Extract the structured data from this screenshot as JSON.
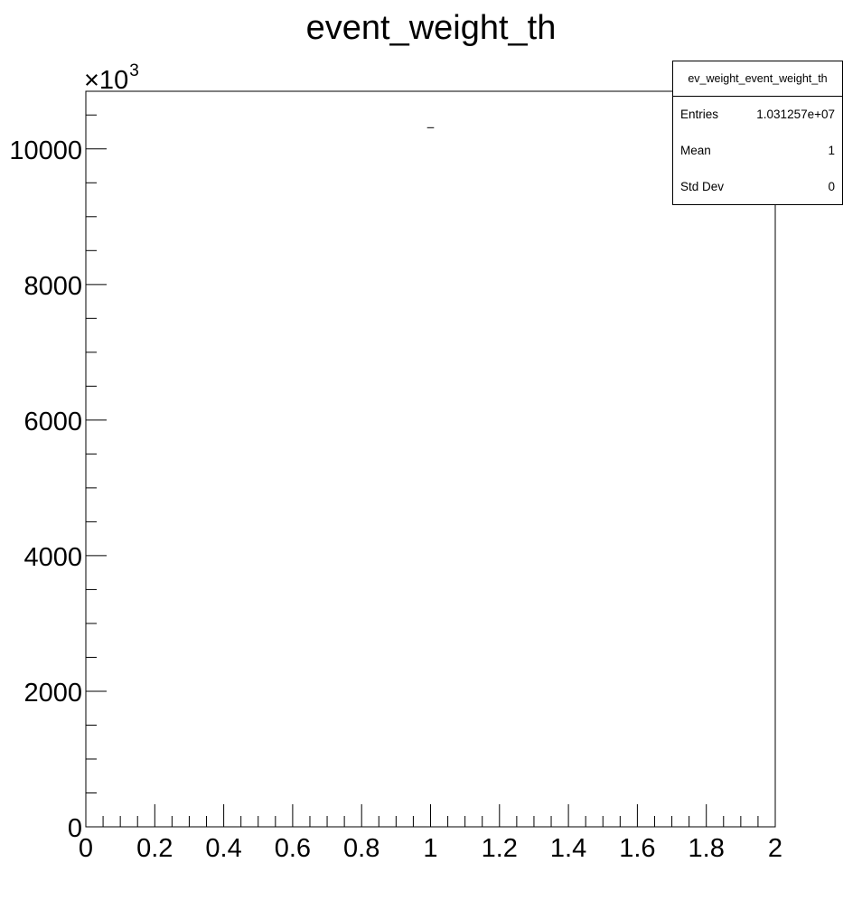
{
  "chart_data": {
    "type": "bar",
    "title": "event_weight_th",
    "xlabel": "",
    "ylabel": "",
    "xlim": [
      0,
      2
    ],
    "ylim": [
      0,
      10850
    ],
    "y_multiplier_label": "×10",
    "y_multiplier_exponent": "3",
    "x_ticks": [
      "0",
      "0.2",
      "0.4",
      "0.6",
      "0.8",
      "1",
      "1.2",
      "1.4",
      "1.6",
      "1.8",
      "2"
    ],
    "y_ticks": [
      "0",
      "2000",
      "4000",
      "6000",
      "8000",
      "10000"
    ],
    "bins": [
      {
        "x_low": 0.99,
        "x_high": 1.01,
        "value": 10312.57
      }
    ],
    "stats": {
      "name": "ev_weight_event_weight_th",
      "rows": [
        {
          "label": "Entries",
          "value": "1.031257e+07"
        },
        {
          "label": "Mean",
          "value": "1"
        },
        {
          "label": "Std Dev",
          "value": "0"
        }
      ]
    }
  }
}
